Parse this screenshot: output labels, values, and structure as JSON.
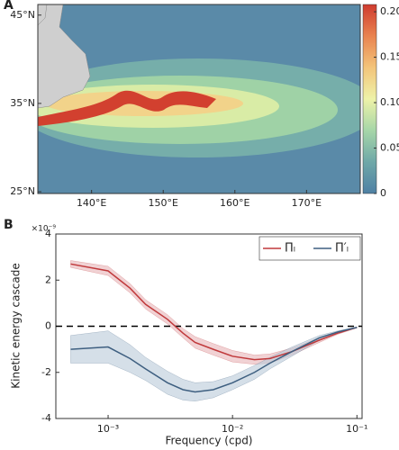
{
  "chart_data": [
    {
      "type": "heatmap",
      "panel_label": "A",
      "xlim": [
        132.5,
        177.5
      ],
      "xticks": [
        {
          "value": 140,
          "label": "140°E"
        },
        {
          "value": 150,
          "label": "150°E"
        },
        {
          "value": 160,
          "label": "160°E"
        },
        {
          "value": 170,
          "label": "170°E"
        }
      ],
      "ylim": [
        24.8,
        46.2
      ],
      "yticks": [
        {
          "value": 25,
          "label": "25°N"
        },
        {
          "value": 35,
          "label": "35°N"
        },
        {
          "value": 45,
          "label": "45°N"
        }
      ],
      "clim": [
        0,
        0.208
      ],
      "cticks": [
        0,
        0.05,
        {
          "value": 0.1,
          "label": "0.10"
        },
        0.15,
        {
          "value": 0.2,
          "label": "0.20"
        }
      ],
      "colormap": [
        "#4f80a4",
        "#6fa8a8",
        "#a6d6a8",
        "#eef2a8",
        "#f3c47a",
        "#e9834f",
        "#cf3b2f"
      ]
    },
    {
      "type": "line",
      "panel_label": "B",
      "ylabel": "Kinetic energy cascade",
      "xlabel": "Frequency (cpd)",
      "y_scale_label": "×10⁻⁹",
      "log_x": true,
      "xlim": [
        0.00038,
        0.11
      ],
      "xticks": [
        {
          "value": 0.001,
          "label": "10⁻³"
        },
        {
          "value": 0.01,
          "label": "10⁻²"
        },
        {
          "value": 0.1,
          "label": "10⁻¹"
        }
      ],
      "ylim": [
        -4,
        4
      ],
      "yticks": [
        -4,
        -2,
        0,
        2,
        4
      ],
      "reference_line": 0,
      "legend": "upper right",
      "x": [
        0.0005,
        0.001,
        0.0015,
        0.002,
        0.003,
        0.004,
        0.005,
        0.007,
        0.01,
        0.015,
        0.02,
        0.03,
        0.05,
        0.07,
        0.1
      ],
      "series": [
        {
          "name": "Π̄ₗ",
          "color": "#c0393b",
          "band_color": "#e8b4b8",
          "values": [
            2.7,
            2.4,
            1.65,
            0.95,
            0.3,
            -0.3,
            -0.7,
            -1.0,
            -1.3,
            -1.45,
            -1.4,
            -1.1,
            -0.6,
            -0.3,
            -0.05
          ],
          "errors": [
            0.15,
            0.2,
            0.2,
            0.2,
            0.2,
            0.2,
            0.25,
            0.25,
            0.25,
            0.2,
            0.2,
            0.15,
            0.1,
            0.05,
            0.02
          ]
        },
        {
          "name": "Π′ₗ",
          "color": "#3e5f80",
          "band_color": "#b9cad8",
          "values": [
            -1.0,
            -0.9,
            -1.4,
            -1.85,
            -2.45,
            -2.75,
            -2.85,
            -2.75,
            -2.45,
            -2.0,
            -1.6,
            -1.1,
            -0.5,
            -0.25,
            -0.05
          ],
          "errors": [
            0.6,
            0.7,
            0.6,
            0.5,
            0.5,
            0.45,
            0.4,
            0.35,
            0.3,
            0.3,
            0.25,
            0.2,
            0.1,
            0.05,
            0.02
          ]
        }
      ]
    }
  ]
}
